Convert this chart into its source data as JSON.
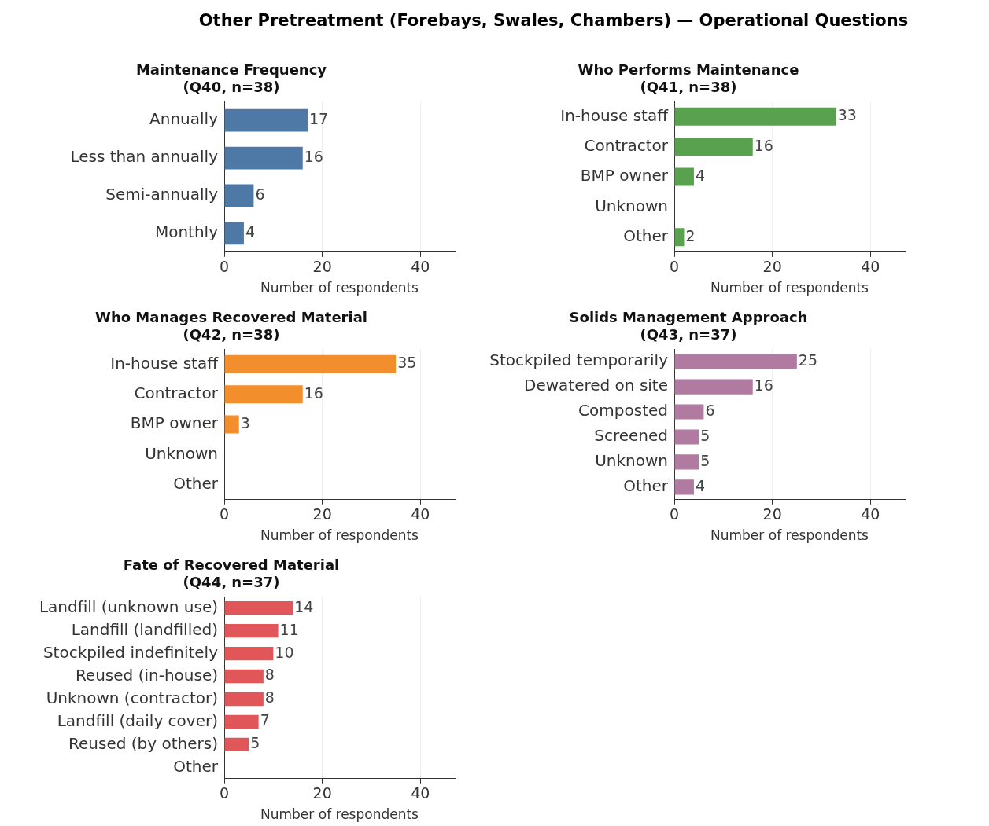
{
  "chart_data": [
    {
      "type": "other",
      "title": "Other Pretreatment (Forebays, Swales, Chambers) — Operational Questions"
    },
    {
      "type": "bar",
      "orientation": "horizontal",
      "title": "Maintenance Frequency",
      "subtitle": "(Q40, n=38)",
      "categories": [
        "Annually",
        "Less than annually",
        "Semi-annually",
        "Monthly"
      ],
      "values": [
        17,
        16,
        6,
        4
      ],
      "value_labels": [
        "17",
        "16",
        "6",
        "4"
      ],
      "color": "#4e79a7",
      "xlim": [
        0,
        47
      ],
      "xticks": [
        0,
        20,
        40
      ],
      "xlabel": "Number of respondents",
      "grid": "x"
    },
    {
      "type": "bar",
      "orientation": "horizontal",
      "title": "Who Performs Maintenance",
      "subtitle": "(Q41, n=38)",
      "categories": [
        "In-house staff",
        "Contractor",
        "BMP owner",
        "Unknown",
        "Other"
      ],
      "values": [
        33,
        16,
        4,
        0,
        2
      ],
      "value_labels": [
        "33",
        "16",
        "4",
        null,
        "2"
      ],
      "color": "#59a14f",
      "xlim": [
        0,
        47
      ],
      "xticks": [
        0,
        20,
        40
      ],
      "xlabel": "Number of respondents",
      "grid": "x"
    },
    {
      "type": "bar",
      "orientation": "horizontal",
      "title": "Who Manages Recovered Material",
      "subtitle": "(Q42, n=38)",
      "categories": [
        "In-house staff",
        "Contractor",
        "BMP owner",
        "Unknown",
        "Other"
      ],
      "values": [
        35,
        16,
        3,
        0,
        0
      ],
      "value_labels": [
        "35",
        "16",
        "3",
        null,
        null
      ],
      "color": "#f28e2b",
      "xlim": [
        0,
        47
      ],
      "xticks": [
        0,
        20,
        40
      ],
      "xlabel": "Number of respondents",
      "grid": "x"
    },
    {
      "type": "bar",
      "orientation": "horizontal",
      "title": "Solids Management Approach",
      "subtitle": "(Q43, n=37)",
      "categories": [
        "Stockpiled temporarily",
        "Dewatered on site",
        "Composted",
        "Screened",
        "Unknown",
        "Other"
      ],
      "values": [
        25,
        16,
        6,
        5,
        5,
        4
      ],
      "value_labels": [
        "25",
        "16",
        "6",
        "5",
        "5",
        "4"
      ],
      "color": "#b07aa1",
      "xlim": [
        0,
        47
      ],
      "xticks": [
        0,
        20,
        40
      ],
      "xlabel": "Number of respondents",
      "grid": "x"
    },
    {
      "type": "bar",
      "orientation": "horizontal",
      "title": "Fate of Recovered Material",
      "subtitle": "(Q44, n=37)",
      "categories": [
        "Landfill (unknown use)",
        "Landfill (landfilled)",
        "Stockpiled indefinitely",
        "Reused (in-house)",
        "Unknown (contractor)",
        "Landfill (daily cover)",
        "Reused (by others)",
        "Other"
      ],
      "values": [
        14,
        11,
        10,
        8,
        8,
        7,
        5,
        0
      ],
      "value_labels": [
        "14",
        "11",
        "10",
        "8",
        "8",
        "7",
        "5",
        null
      ],
      "color": "#e15759",
      "xlim": [
        0,
        47
      ],
      "xticks": [
        0,
        20,
        40
      ],
      "xlabel": "Number of respondents",
      "grid": "x"
    }
  ]
}
